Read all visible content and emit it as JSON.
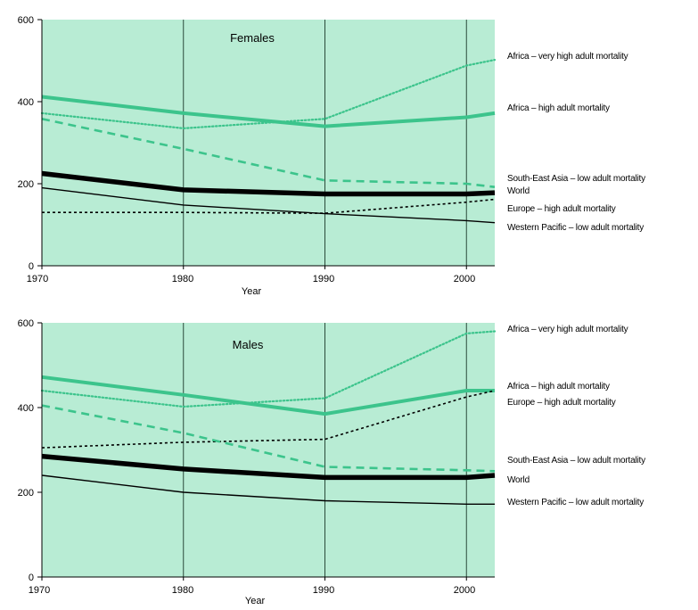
{
  "chart_data": [
    {
      "type": "line",
      "title": "Females",
      "xlabel": "Year",
      "ylabel": "",
      "xlim": [
        1970,
        2002
      ],
      "ylim": [
        0,
        600
      ],
      "xticks": [
        "1970",
        "1980",
        "1990",
        "2000"
      ],
      "yticks": [
        "0",
        "200",
        "400",
        "600"
      ],
      "grid_x": true,
      "legend_position": "right",
      "colors": {
        "plot_bg": "#b8ecd4",
        "green": "#3cc48c",
        "black": "#000000"
      },
      "series": [
        {
          "name": "Africa – very high adult mortality",
          "style": "green-dotted",
          "x": [
            1970,
            1980,
            1990,
            2000,
            2002
          ],
          "y": [
            372,
            335,
            358,
            488,
            502
          ]
        },
        {
          "name": "Africa – high adult mortality",
          "style": "green-thick",
          "x": [
            1970,
            1980,
            1990,
            2000,
            2002
          ],
          "y": [
            412,
            372,
            340,
            362,
            372
          ]
        },
        {
          "name": "South-East Asia – low adult mortality",
          "style": "green-dashed",
          "x": [
            1970,
            1980,
            1990,
            2000,
            2002
          ],
          "y": [
            358,
            285,
            208,
            200,
            192
          ]
        },
        {
          "name": "World",
          "style": "black-thick",
          "x": [
            1970,
            1980,
            1990,
            2000,
            2002
          ],
          "y": [
            225,
            185,
            175,
            175,
            178
          ]
        },
        {
          "name": "Europe – high adult mortality",
          "style": "black-dotted",
          "x": [
            1970,
            1980,
            1990,
            2000,
            2002
          ],
          "y": [
            130,
            130,
            128,
            155,
            162
          ]
        },
        {
          "name": "Western Pacific – low adult mortality",
          "style": "black-thin",
          "x": [
            1970,
            1980,
            1990,
            2000,
            2002
          ],
          "y": [
            190,
            148,
            127,
            110,
            105
          ]
        }
      ]
    },
    {
      "type": "line",
      "title": "Males",
      "xlabel": "Year",
      "ylabel": "",
      "xlim": [
        1970,
        2002
      ],
      "ylim": [
        0,
        600
      ],
      "xticks": [
        "1970",
        "1980",
        "1990",
        "2000"
      ],
      "yticks": [
        "0",
        "200",
        "400",
        "600"
      ],
      "grid_x": true,
      "legend_position": "right",
      "colors": {
        "plot_bg": "#b8ecd4",
        "green": "#3cc48c",
        "black": "#000000"
      },
      "series": [
        {
          "name": "Africa – very high adult mortality",
          "style": "green-dotted",
          "x": [
            1970,
            1980,
            1990,
            2000,
            2002
          ],
          "y": [
            440,
            402,
            422,
            575,
            580
          ]
        },
        {
          "name": "Africa – high adult mortality",
          "style": "green-thick",
          "x": [
            1970,
            1980,
            1990,
            2000,
            2002
          ],
          "y": [
            472,
            430,
            385,
            440,
            440
          ]
        },
        {
          "name": "Europe – high adult mortality",
          "style": "black-dotted",
          "x": [
            1970,
            1980,
            1990,
            2000,
            2002
          ],
          "y": [
            305,
            318,
            325,
            425,
            440
          ]
        },
        {
          "name": "South-East Asia – low adult mortality",
          "style": "green-dashed",
          "x": [
            1970,
            1980,
            1990,
            2000,
            2002
          ],
          "y": [
            405,
            340,
            260,
            252,
            250
          ]
        },
        {
          "name": "World",
          "style": "black-thick",
          "x": [
            1970,
            1980,
            1990,
            2000,
            2002
          ],
          "y": [
            285,
            255,
            235,
            235,
            240
          ]
        },
        {
          "name": "Western Pacific – low adult mortality",
          "style": "black-thin",
          "x": [
            1970,
            1980,
            1990,
            2000,
            2002
          ],
          "y": [
            240,
            200,
            180,
            172,
            172
          ]
        }
      ]
    }
  ],
  "panels": [
    {
      "title": "Females",
      "xlabel": "Year",
      "yticks": [
        "0",
        "200",
        "400",
        "600"
      ],
      "xticks": [
        "1970",
        "1980",
        "1990",
        "2000"
      ],
      "legend": [
        "Africa – very high adult mortality",
        "Africa – high adult mortality",
        "South-East Asia – low adult mortality",
        "World",
        "Europe – high adult mortality",
        "Western Pacific – low adult mortality"
      ]
    },
    {
      "title": "Males",
      "xlabel": "Year",
      "yticks": [
        "0",
        "200",
        "400",
        "600"
      ],
      "xticks": [
        "1970",
        "1980",
        "1990",
        "2000"
      ],
      "legend": [
        "Africa – very high adult mortality",
        "Africa – high adult mortality",
        "Europe – high adult mortality",
        "South-East Asia – low adult mortality",
        "World",
        "Western Pacific – low adult mortality"
      ]
    }
  ]
}
